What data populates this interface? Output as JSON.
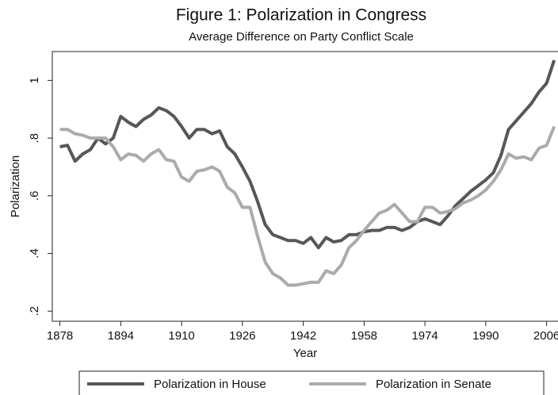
{
  "chart_data": {
    "type": "line",
    "title": "Figure 1: Polarization in Congress",
    "subtitle": "Average Difference on Party Conflict Scale",
    "x_label": "Year",
    "y_label": "Polarization",
    "x": [
      1878,
      1880,
      1882,
      1884,
      1886,
      1888,
      1890,
      1892,
      1894,
      1896,
      1898,
      1900,
      1902,
      1904,
      1906,
      1908,
      1910,
      1912,
      1914,
      1916,
      1918,
      1920,
      1922,
      1924,
      1926,
      1928,
      1930,
      1932,
      1934,
      1936,
      1938,
      1940,
      1942,
      1944,
      1946,
      1948,
      1950,
      1952,
      1954,
      1956,
      1958,
      1960,
      1962,
      1964,
      1966,
      1968,
      1970,
      1972,
      1974,
      1976,
      1978,
      1980,
      1982,
      1984,
      1986,
      1988,
      1990,
      1992,
      1994,
      1996,
      1998,
      2000,
      2002,
      2004,
      2006,
      2008
    ],
    "series": [
      {
        "name": "Polarization in House",
        "color": "#575757",
        "values": [
          0.77,
          0.775,
          0.72,
          0.745,
          0.76,
          0.8,
          0.78,
          0.8,
          0.875,
          0.855,
          0.84,
          0.865,
          0.88,
          0.905,
          0.895,
          0.875,
          0.84,
          0.8,
          0.83,
          0.83,
          0.815,
          0.825,
          0.77,
          0.745,
          0.7,
          0.65,
          0.58,
          0.5,
          0.465,
          0.455,
          0.445,
          0.445,
          0.435,
          0.455,
          0.42,
          0.455,
          0.44,
          0.445,
          0.465,
          0.465,
          0.475,
          0.48,
          0.48,
          0.49,
          0.49,
          0.48,
          0.49,
          0.51,
          0.52,
          0.51,
          0.5,
          0.53,
          0.565,
          0.59,
          0.615,
          0.635,
          0.655,
          0.68,
          0.74,
          0.83,
          0.86,
          0.89,
          0.92,
          0.96,
          0.99,
          1.07
        ]
      },
      {
        "name": "Polarization in Senate",
        "color": "#ababab",
        "values": [
          0.83,
          0.83,
          0.815,
          0.81,
          0.8,
          0.8,
          0.8,
          0.77,
          0.725,
          0.745,
          0.74,
          0.72,
          0.745,
          0.76,
          0.725,
          0.72,
          0.665,
          0.65,
          0.685,
          0.69,
          0.7,
          0.685,
          0.63,
          0.61,
          0.56,
          0.56,
          0.46,
          0.37,
          0.33,
          0.315,
          0.29,
          0.29,
          0.295,
          0.3,
          0.3,
          0.34,
          0.33,
          0.36,
          0.42,
          0.445,
          0.48,
          0.51,
          0.54,
          0.55,
          0.57,
          0.54,
          0.51,
          0.51,
          0.56,
          0.56,
          0.54,
          0.545,
          0.555,
          0.575,
          0.585,
          0.6,
          0.62,
          0.65,
          0.69,
          0.745,
          0.73,
          0.735,
          0.725,
          0.765,
          0.775,
          0.84
        ]
      }
    ],
    "xlim": [
      1876,
      2009
    ],
    "xticks": [
      1878,
      1894,
      1910,
      1926,
      1942,
      1958,
      1974,
      1990,
      2006
    ],
    "ylim": [
      0.165,
      1.1
    ],
    "yticks": [
      {
        "value": 0.2,
        "label": ".2"
      },
      {
        "value": 0.4,
        "label": ".4"
      },
      {
        "value": 0.6,
        "label": ".6"
      },
      {
        "value": 0.8,
        "label": ".8"
      },
      1
    ],
    "grid": false,
    "legend": "bottom"
  }
}
